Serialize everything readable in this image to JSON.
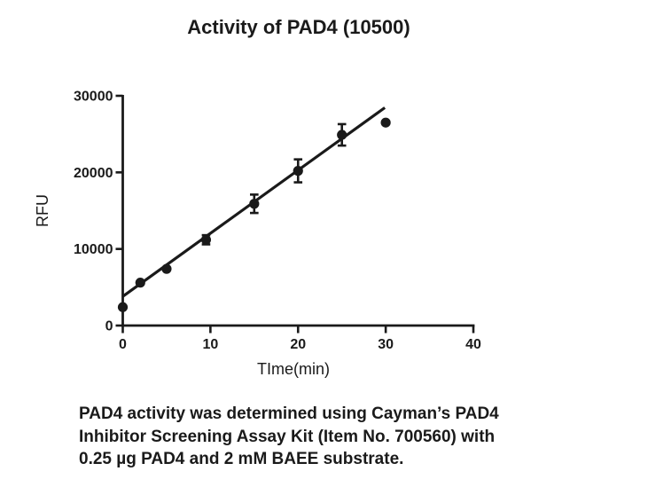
{
  "colors": {
    "ink": "#1a1a1a",
    "background": "#ffffff"
  },
  "chart_data": {
    "type": "scatter",
    "title": "Activity of PAD4 (10500)",
    "xlabel": "TIme(min)",
    "ylabel": "RFU",
    "xlim": [
      0,
      40
    ],
    "ylim": [
      0,
      30000
    ],
    "xticks": [
      0,
      10,
      20,
      30,
      40
    ],
    "yticks": [
      0,
      10000,
      20000,
      30000
    ],
    "grid": false,
    "legend": null,
    "marker": "filled-circle",
    "series": [
      {
        "name": "PAD4 activity",
        "points": [
          {
            "t": 0,
            "rfu": 2400,
            "err": 0
          },
          {
            "t": 2,
            "rfu": 5600,
            "err": 0
          },
          {
            "t": 5,
            "rfu": 7400,
            "err": 0
          },
          {
            "t": 9.5,
            "rfu": 11200,
            "err": 600
          },
          {
            "t": 15,
            "rfu": 15900,
            "err": 1200
          },
          {
            "t": 20,
            "rfu": 20200,
            "err": 1500
          },
          {
            "t": 25,
            "rfu": 24900,
            "err": 1400
          },
          {
            "t": 30,
            "rfu": 26500,
            "err": 0
          }
        ]
      }
    ],
    "fit_line": {
      "x": [
        0,
        29.9
      ],
      "y": [
        3800,
        28450
      ]
    }
  },
  "caption": {
    "lines": [
      "PAD4 activity was determined using Cayman’s PAD4",
      "Inhibitor Screening Assay Kit (Item No. 700560) with",
      "0.25 µg PAD4 and 2 mM BAEE substrate."
    ]
  }
}
